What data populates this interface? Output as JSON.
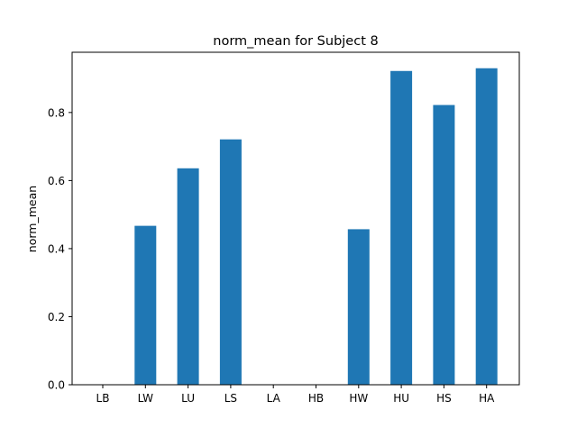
{
  "chart_data": {
    "type": "bar",
    "title": "norm_mean for Subject 8",
    "xlabel": "",
    "ylabel": "norm_mean",
    "categories": [
      "LB",
      "LW",
      "LU",
      "LS",
      "LA",
      "HB",
      "HW",
      "HU",
      "HS",
      "HA"
    ],
    "values": [
      0.0,
      0.467,
      0.636,
      0.721,
      0.0,
      0.0,
      0.457,
      0.922,
      0.822,
      0.93
    ],
    "ylim": [
      0,
      0.977
    ],
    "yticks": [
      "0.0",
      "0.2",
      "0.4",
      "0.6",
      "0.8"
    ],
    "grid": false,
    "bar_color": "#1f77b4"
  }
}
